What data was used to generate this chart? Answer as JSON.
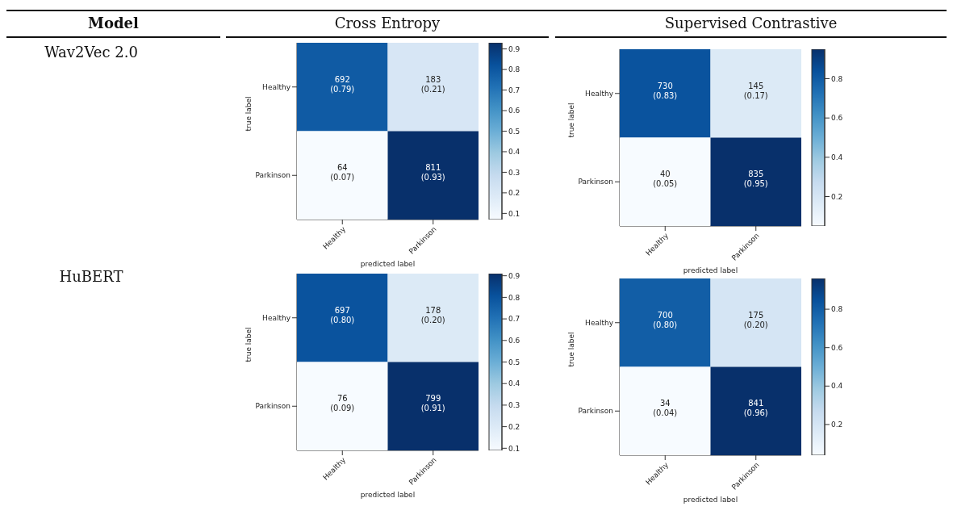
{
  "chart_data": [
    {
      "type": "other",
      "annotations": [
        "Model",
        "Cross Entropy",
        "Supervised Contrastive",
        "Wav2Vec 2.0",
        "HuBERT"
      ]
    },
    {
      "type": "heatmap",
      "categories": [
        "Healthy",
        "Parkinson"
      ],
      "y_categories": [
        "Healthy",
        "Parkinson"
      ],
      "xlabel": "predicted label",
      "ylabel": "true label",
      "cells": [
        [
          0.79,
          0.21
        ],
        [
          0.07,
          0.93
        ]
      ],
      "cell_labels": [
        [
          "692\n(0.79)",
          "183\n(0.21)"
        ],
        [
          "64\n(0.07)",
          "811\n(0.93)"
        ]
      ],
      "clim": [
        0.07,
        0.93
      ],
      "cticks": [
        0.1,
        0.2,
        0.3,
        0.4,
        0.5,
        0.6,
        0.7,
        0.8,
        0.9
      ]
    },
    {
      "type": "heatmap",
      "categories": [
        "Healthy",
        "Parkinson"
      ],
      "y_categories": [
        "Healthy",
        "Parkinson"
      ],
      "xlabel": "predicted label",
      "ylabel": "true label",
      "cells": [
        [
          0.83,
          0.17
        ],
        [
          0.05,
          0.95
        ]
      ],
      "cell_labels": [
        [
          "730\n(0.83)",
          "145\n(0.17)"
        ],
        [
          "40\n(0.05)",
          "835\n(0.95)"
        ]
      ],
      "clim": [
        0.05,
        0.95
      ],
      "cticks": [
        0.2,
        0.4,
        0.6,
        0.8
      ]
    },
    {
      "type": "heatmap",
      "categories": [
        "Healthy",
        "Parkinson"
      ],
      "y_categories": [
        "Healthy",
        "Parkinson"
      ],
      "xlabel": "predicted label",
      "ylabel": "true label",
      "cells": [
        [
          0.8,
          0.2
        ],
        [
          0.09,
          0.91
        ]
      ],
      "cell_labels": [
        [
          "697\n(0.80)",
          "178\n(0.20)"
        ],
        [
          "76\n(0.09)",
          "799\n(0.91)"
        ]
      ],
      "clim": [
        0.09,
        0.91
      ],
      "cticks": [
        0.1,
        0.2,
        0.3,
        0.4,
        0.5,
        0.6,
        0.7,
        0.8,
        0.9
      ]
    },
    {
      "type": "heatmap",
      "categories": [
        "Healthy",
        "Parkinson"
      ],
      "y_categories": [
        "Healthy",
        "Parkinson"
      ],
      "xlabel": "predicted label",
      "ylabel": "true label",
      "cells": [
        [
          0.8,
          0.2
        ],
        [
          0.04,
          0.96
        ]
      ],
      "cell_labels": [
        [
          "700\n(0.80)",
          "175\n(0.20)"
        ],
        [
          "34\n(0.04)",
          "841\n(0.96)"
        ]
      ],
      "clim": [
        0.04,
        0.96
      ],
      "cticks": [
        0.2,
        0.4,
        0.6,
        0.8
      ]
    }
  ]
}
